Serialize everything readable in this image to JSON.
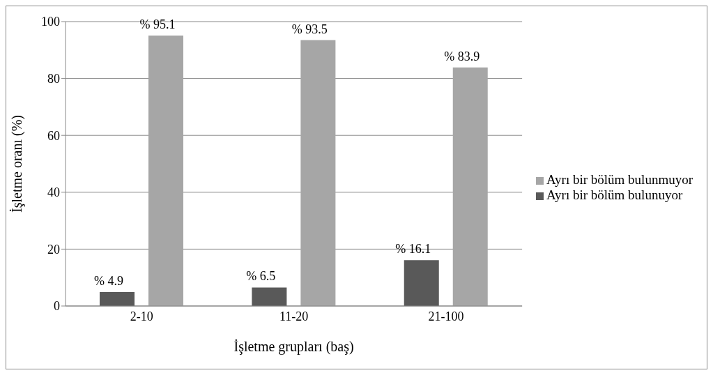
{
  "chart_data": {
    "type": "bar",
    "xlabel": "İşletme grupları (baş)",
    "ylabel": "İşletme oranı (%)",
    "categories": [
      "2-10",
      "11-20",
      "21-100"
    ],
    "series": [
      {
        "name": "Ayrı bir bölüm bulunuyor",
        "color": "#595959",
        "values": [
          4.9,
          6.5,
          16.1
        ],
        "value_labels": [
          "% 4.9",
          "% 6.5",
          "% 16.1"
        ]
      },
      {
        "name": "Ayrı bir bölüm bulunmuyor",
        "color": "#a6a6a6",
        "values": [
          95.1,
          93.5,
          83.9
        ],
        "value_labels": [
          "% 95.1",
          "% 93.5",
          "% 83.9"
        ]
      }
    ],
    "ylim": [
      0,
      100
    ],
    "yticks": [
      0,
      20,
      40,
      60,
      80,
      100
    ],
    "grid": "y",
    "legend": "right"
  }
}
